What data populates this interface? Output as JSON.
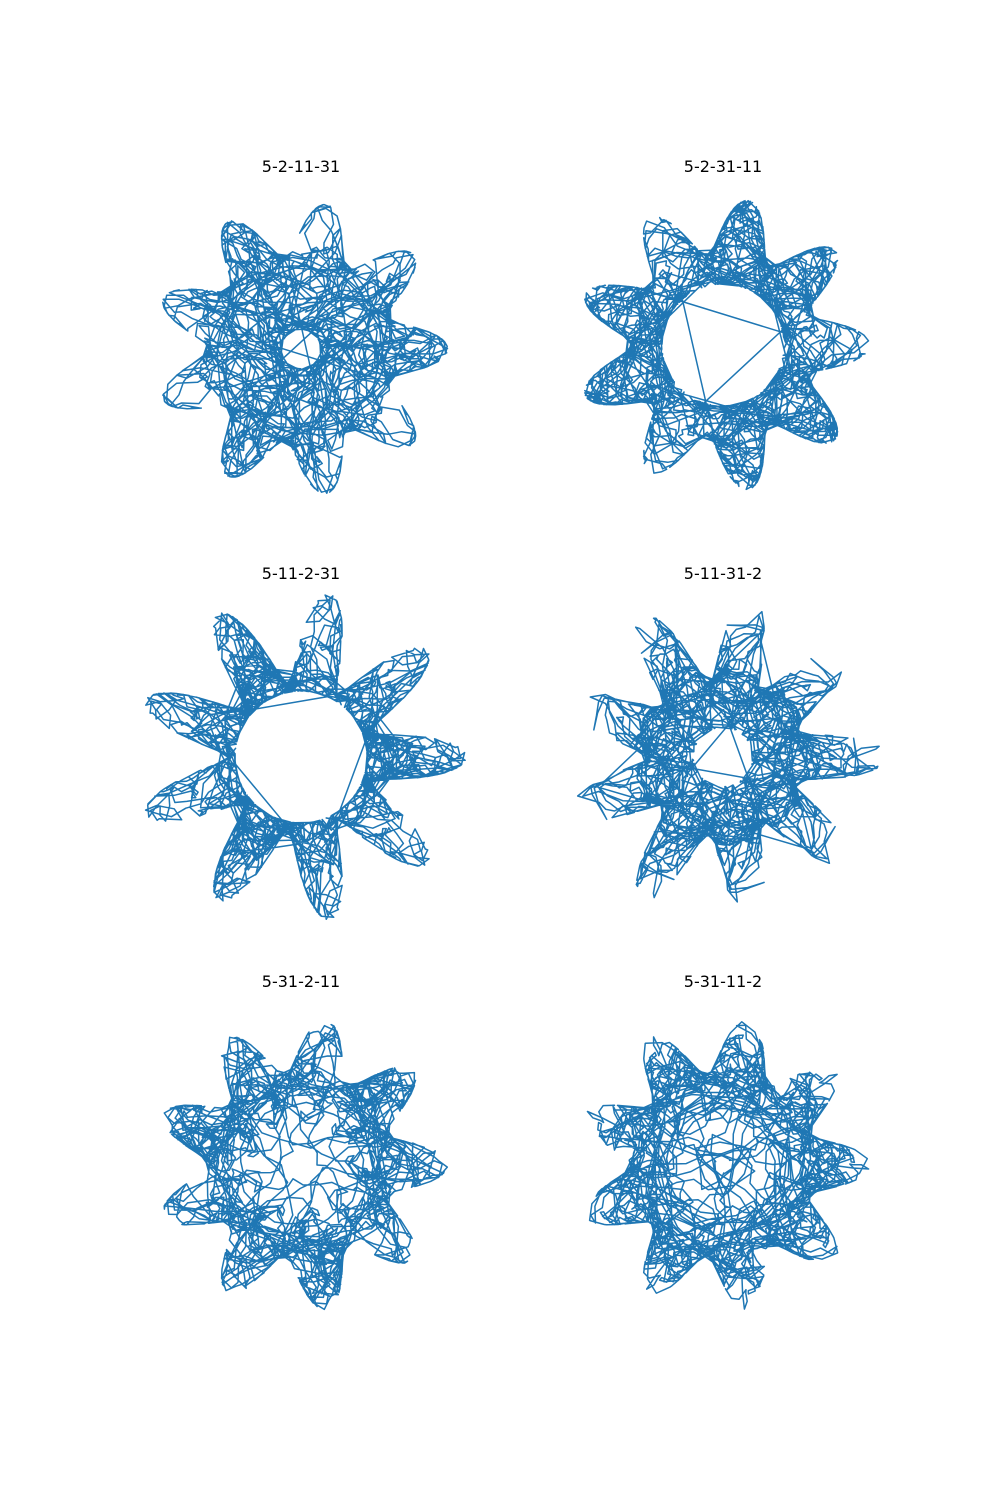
{
  "figure": {
    "line_color": "#1f77b4",
    "background": "#ffffff"
  },
  "chart_data": [
    {
      "type": "line",
      "title": "5-2-11-31",
      "sequence": [
        5,
        2,
        11,
        31
      ],
      "grid": false,
      "axes_visible": false
    },
    {
      "type": "line",
      "title": "5-2-31-11",
      "sequence": [
        5,
        2,
        31,
        11
      ],
      "grid": false,
      "axes_visible": false
    },
    {
      "type": "line",
      "title": "5-11-2-31",
      "sequence": [
        5,
        11,
        2,
        31
      ],
      "grid": false,
      "axes_visible": false
    },
    {
      "type": "line",
      "title": "5-11-31-2",
      "sequence": [
        5,
        11,
        31,
        2
      ],
      "grid": false,
      "axes_visible": false
    },
    {
      "type": "line",
      "title": "5-31-2-11",
      "sequence": [
        5,
        31,
        2,
        11
      ],
      "grid": false,
      "axes_visible": false
    },
    {
      "type": "line",
      "title": "5-31-11-2",
      "sequence": [
        5,
        31,
        11,
        2
      ],
      "grid": false,
      "axes_visible": false
    }
  ]
}
